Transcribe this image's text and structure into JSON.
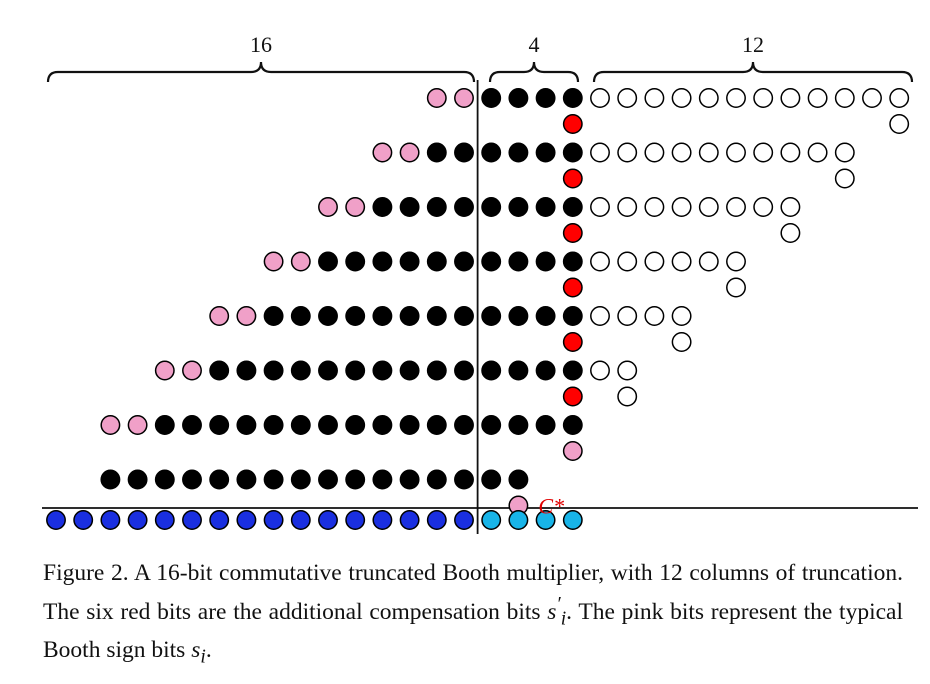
{
  "figure": {
    "braces": [
      {
        "label": "16"
      },
      {
        "label": "4"
      },
      {
        "label": "12"
      }
    ],
    "compensation_label": "C*",
    "total_columns": 32,
    "kept_columns": 20,
    "truncated_columns": 12,
    "rows": [
      {
        "pink_count": 2,
        "black_count": 4,
        "white_count": 12,
        "extra": "red",
        "extra_white_count": 1
      },
      {
        "pink_count": 2,
        "black_count": 6,
        "white_count": 10,
        "extra": "red",
        "extra_white_count": 1
      },
      {
        "pink_count": 2,
        "black_count": 8,
        "white_count": 8,
        "extra": "red",
        "extra_white_count": 1
      },
      {
        "pink_count": 2,
        "black_count": 10,
        "white_count": 6,
        "extra": "red",
        "extra_white_count": 1
      },
      {
        "pink_count": 2,
        "black_count": 12,
        "white_count": 4,
        "extra": "red",
        "extra_white_count": 1
      },
      {
        "pink_count": 2,
        "black_count": 14,
        "white_count": 2,
        "extra": "red",
        "extra_white_count": 1
      },
      {
        "pink_count": 2,
        "black_count": 16,
        "white_count": 0,
        "extra": "pink",
        "extra_white_count": 0
      },
      {
        "pink_count": 0,
        "black_count": 16,
        "white_count": 0,
        "extra": "pink-cstar",
        "extra_white_count": 0
      }
    ],
    "result_row": {
      "blue_count": 16,
      "cyan_count": 4
    },
    "colors": {
      "black": "#000000",
      "pink": "#f0a0c8",
      "red": "#ff0000",
      "white": "#ffffff",
      "blue": "#1a2fe0",
      "cyan": "#18b4e8",
      "cstar": "#e00000"
    }
  },
  "caption": {
    "p1": "Figure 2. A 16-bit commutative truncated Booth multiplier, with 12 columns of truncation. The six red bits are the additional compensation bits ",
    "m1": "s",
    "m1sup": "′",
    "m1sub": "i",
    "p2": ". The pink bits represent the typical Booth sign bits ",
    "m2": "s",
    "m2sub": "i",
    "p3": "."
  }
}
